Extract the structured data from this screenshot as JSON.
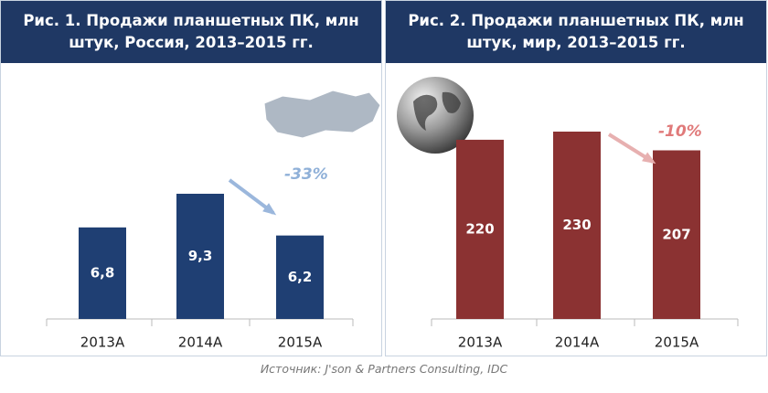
{
  "chart_data": [
    {
      "type": "bar",
      "title": "Рис. 1. Продажи планшетных ПК, млн штук, Россия, 2013–2015 гг.",
      "categories": [
        "2013А",
        "2014А",
        "2015А"
      ],
      "values": [
        6.8,
        9.3,
        6.2
      ],
      "value_labels": [
        "6,8",
        "9,3",
        "6,2"
      ],
      "color": "#1f3f73",
      "annotation": "-33%"
    },
    {
      "type": "bar",
      "title": "Рис. 2. Продажи планшетных ПК, млн штук, мир, 2013–2015 гг.",
      "categories": [
        "2013А",
        "2014А",
        "2015А"
      ],
      "values": [
        220,
        230,
        207
      ],
      "color": "#8b3232",
      "annotation": "-10%"
    }
  ],
  "source": "Источник: J'son & Partners Consulting, IDC"
}
